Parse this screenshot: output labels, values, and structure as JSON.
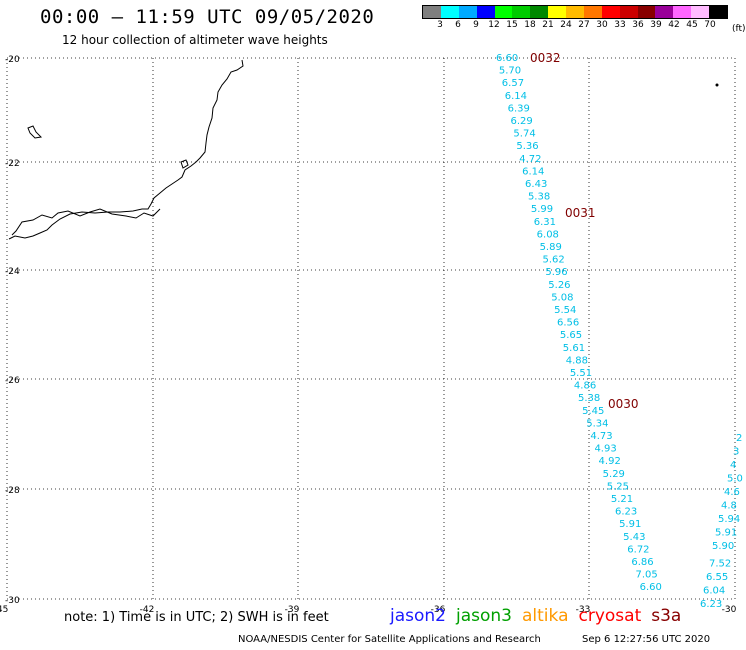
{
  "header": {
    "title": "00:00 – 11:59 UTC 09/05/2020",
    "subtitle": "12 hour collection of altimeter wave heights"
  },
  "scale": {
    "unit": "(ft)",
    "labels": [
      "3",
      "6",
      "9",
      "12",
      "15",
      "18",
      "21",
      "24",
      "27",
      "30",
      "33",
      "36",
      "39",
      "42",
      "45",
      "70"
    ],
    "colors": [
      "#7f7f7f",
      "#00ffff",
      "#00aaff",
      "#0000ff",
      "#00ff00",
      "#00cc00",
      "#008800",
      "#ffff00",
      "#ffbb00",
      "#ff7700",
      "#ff0000",
      "#cc0000",
      "#880000",
      "#990099",
      "#ff66ff",
      "#ffbbff",
      "#000000"
    ]
  },
  "axes": {
    "x_ticks": [
      "-45",
      "-42",
      "-39",
      "-36",
      "-33",
      "-30"
    ],
    "y_ticks": [
      "-20",
      "-22",
      "-24",
      "-26",
      "-28",
      "-30"
    ]
  },
  "track_times": [
    {
      "label": "0032"
    },
    {
      "label": "0031"
    },
    {
      "label": "0030"
    }
  ],
  "track_main": [
    "6.60",
    "5.70",
    "6.57",
    "6.14",
    "6.39",
    "6.29",
    "5.74",
    "5.36",
    "4.72",
    "6.14",
    "6.43",
    "5.38",
    "5.99",
    "6.31",
    "6.08",
    "5.89",
    "5.62",
    "5.96",
    "5.26",
    "5.08",
    "5.54",
    "6.56",
    "5.65",
    "5.61",
    "4.88",
    "5.51",
    "4.86",
    "5.38",
    "5.45",
    "5.34",
    "4.73",
    "4.93",
    "4.92",
    "5.29",
    "5.25",
    "5.21",
    "6.23",
    "5.91",
    "5.43",
    "6.72",
    "6.86",
    "7.05",
    "6.60"
  ],
  "track_edge": [
    "2",
    "3",
    "4",
    "5.0",
    "4.6",
    "4.8",
    "5.94",
    "5.91",
    "5.90",
    "7.52",
    "6.55",
    "6.04",
    "6.23"
  ],
  "notes": {
    "footnote": "note:  1) Time is in UTC;  2) SWH is in feet",
    "credit": "NOAA/NESDIS Center for Satellite Applications and Research",
    "timestamp": "Sep  6 12:27:56 UTC 2020"
  },
  "satellites": [
    {
      "name": "jason2",
      "color": "#1a1aff"
    },
    {
      "name": "jason3",
      "color": "#00a000"
    },
    {
      "name": "altika",
      "color": "#ff9900"
    },
    {
      "name": "cryosat",
      "color": "#ff0000"
    },
    {
      "name": "s3a",
      "color": "#880000"
    }
  ],
  "colors": {
    "track_label": "#00bfe6",
    "time_label": "#800000"
  }
}
